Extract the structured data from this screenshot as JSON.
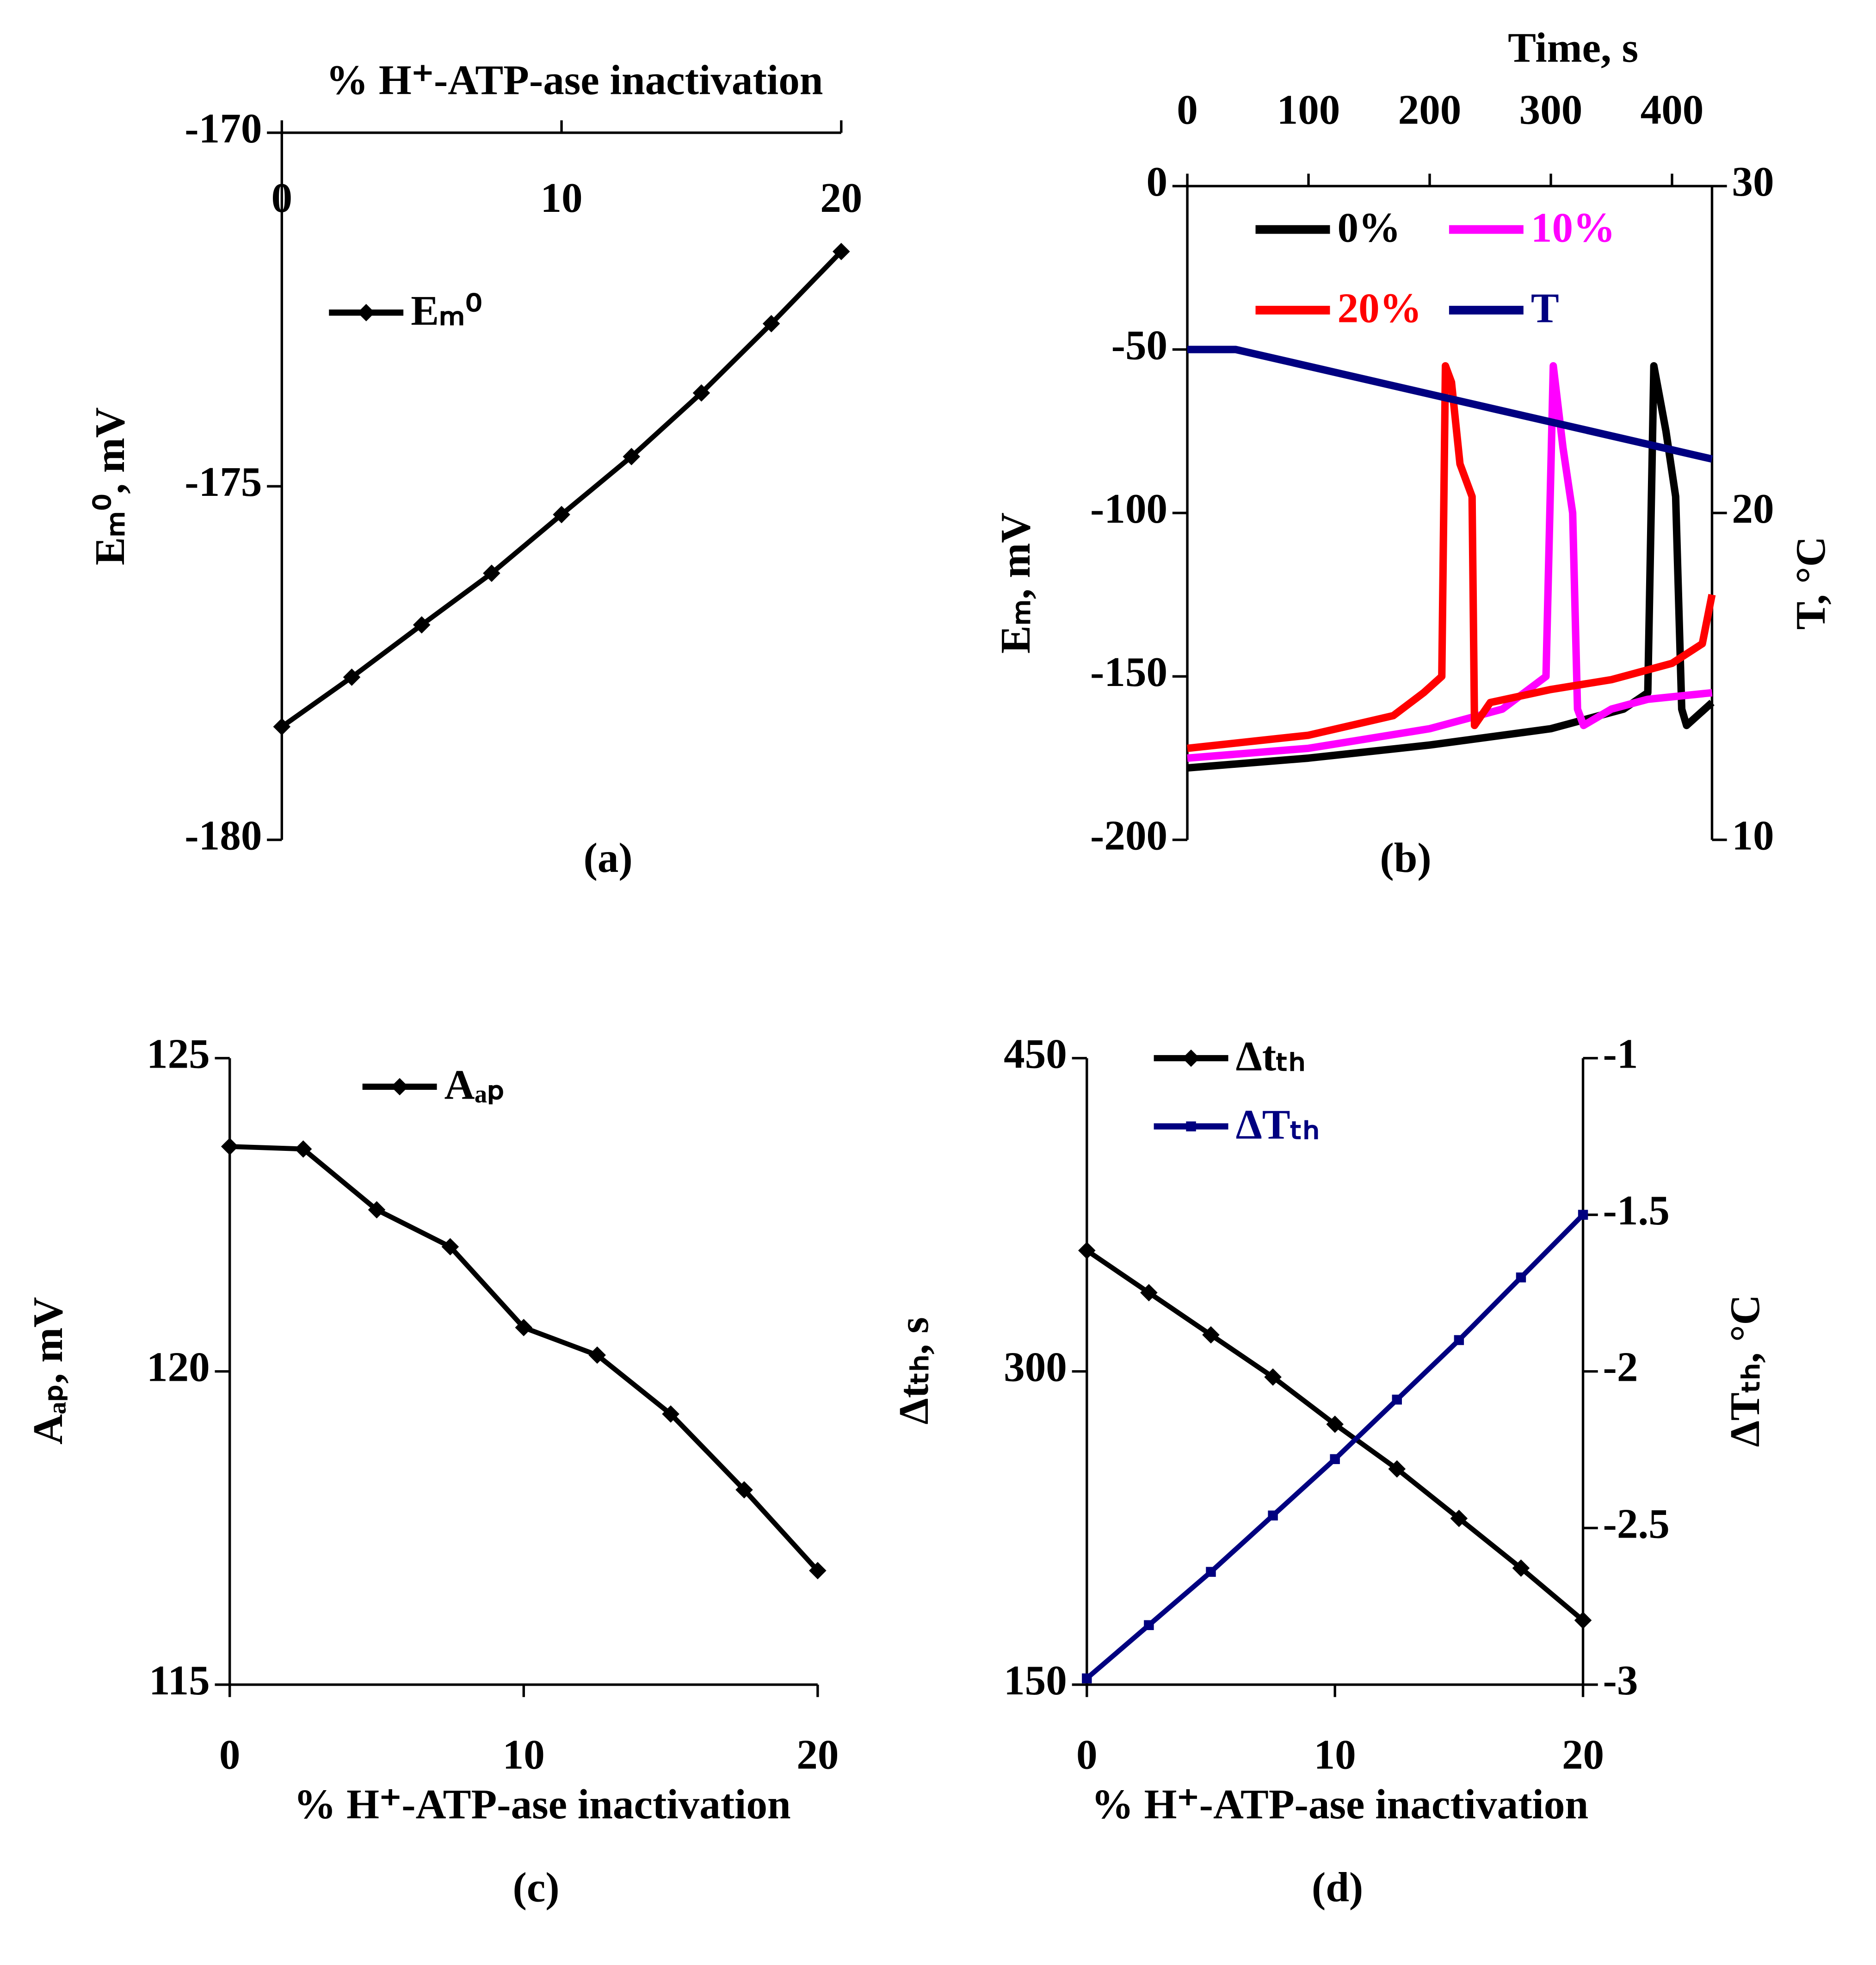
{
  "chart_data": [
    {
      "type": "line",
      "label": "(a)",
      "x_label": "% H⁺-ATP-ase inactivation",
      "y_label": "Eₘ⁰, mV",
      "x": [
        0,
        2.5,
        5,
        7.5,
        10,
        12.5,
        15,
        17.5,
        20
      ],
      "series": [
        {
          "name": "Eₘ⁰",
          "color": "#000000",
          "marker": "diamond",
          "values": [
            -178.4,
            -177.7,
            -176.96,
            -176.23,
            -175.4,
            -174.58,
            -173.68,
            -172.7,
            -171.68
          ]
        }
      ],
      "xlim": [
        0,
        20
      ],
      "xticks": [
        0,
        10,
        20
      ],
      "ylim": [
        -180,
        -170
      ],
      "yticks": [
        -180,
        -175,
        -170
      ],
      "xaxis": "top"
    },
    {
      "type": "line",
      "label": "(b)",
      "x_label": "Time, s",
      "y_label": "Eₘ, mV",
      "y2_label": "T, °C",
      "series": [
        {
          "name": "0%",
          "color": "#000000",
          "x": [
            0,
            100,
            200,
            300,
            360,
            380,
            385,
            395,
            403,
            408,
            412,
            433
          ],
          "values": [
            -178,
            -175,
            -171,
            -166,
            -160,
            -155,
            -55,
            -75,
            -95,
            -160,
            -165,
            -158
          ]
        },
        {
          "name": "10%",
          "color": "#ff00ff",
          "x": [
            0,
            100,
            200,
            260,
            296,
            302,
            310,
            318,
            322,
            327,
            350,
            380,
            433
          ],
          "values": [
            -175,
            -172,
            -166,
            -160,
            -150,
            -55,
            -80,
            -100,
            -160,
            -165,
            -160,
            -157,
            -155
          ]
        },
        {
          "name": "20%",
          "color": "#ff0000",
          "x": [
            0,
            100,
            170,
            195,
            210,
            213,
            218,
            225,
            235,
            237,
            250,
            300,
            350,
            400,
            425,
            433
          ],
          "values": [
            -172,
            -168,
            -162,
            -155,
            -150,
            -55,
            -60,
            -85,
            -95,
            -165,
            -158,
            -154,
            -151,
            -146,
            -140,
            -125
          ]
        },
        {
          "name": "T",
          "color": "#000080",
          "axis": "y2",
          "x": [
            0,
            40,
            433
          ],
          "values": [
            25,
            25,
            21.65
          ]
        }
      ],
      "xlim": [
        0,
        433
      ],
      "xticks": [
        0,
        100,
        200,
        300,
        400
      ],
      "ylim": [
        -200,
        0
      ],
      "yticks": [
        -200,
        -150,
        -100,
        -50,
        0
      ],
      "y2lim": [
        10,
        30
      ],
      "y2ticks": [
        10,
        20,
        30
      ],
      "xaxis": "top"
    },
    {
      "type": "line",
      "label": "(c)",
      "x_label": "% H⁺-ATP-ase inactivation",
      "y_label": "Aₐₚ, mV",
      "x": [
        0,
        2.5,
        5,
        7.5,
        10,
        12.5,
        15,
        17.5,
        20
      ],
      "series": [
        {
          "name": "Aₐₚ",
          "color": "#000000",
          "marker": "diamond",
          "values": [
            123.59,
            123.55,
            122.58,
            121.99,
            120.7,
            120.26,
            119.32,
            118.11,
            116.82
          ]
        }
      ],
      "xlim": [
        0,
        20
      ],
      "xticks": [
        0,
        10,
        20
      ],
      "ylim": [
        115,
        125
      ],
      "yticks": [
        115,
        120,
        125
      ],
      "xaxis": "bottom"
    },
    {
      "type": "line",
      "label": "(d)",
      "x_label": "% H⁺-ATP-ase inactivation",
      "y_label": "Δtₜₕ, s",
      "y2_label": "ΔTₜₕ, °C",
      "x": [
        0,
        2.5,
        5,
        7.5,
        10,
        12.5,
        15,
        17.5,
        20
      ],
      "series": [
        {
          "name": "Δtₜₕ",
          "color": "#000000",
          "marker": "diamond",
          "values": [
            357.9,
            337.7,
            317.5,
            297.3,
            274.7,
            253.3,
            229.6,
            205.8,
            180.8
          ]
        },
        {
          "name": "ΔTₜₕ",
          "color": "#000080",
          "marker": "square",
          "axis": "y2",
          "values": [
            -2.98,
            -2.81,
            -2.64,
            -2.46,
            -2.28,
            -2.09,
            -1.9,
            -1.7,
            -1.5
          ]
        }
      ],
      "xlim": [
        0,
        20
      ],
      "xticks": [
        0,
        10,
        20
      ],
      "ylim": [
        150,
        450
      ],
      "yticks": [
        150,
        300,
        450
      ],
      "y2lim": [
        -3,
        -1
      ],
      "y2ticks": [
        -3,
        -2.5,
        -2,
        -1.5,
        -1
      ],
      "xaxis": "bottom"
    }
  ]
}
